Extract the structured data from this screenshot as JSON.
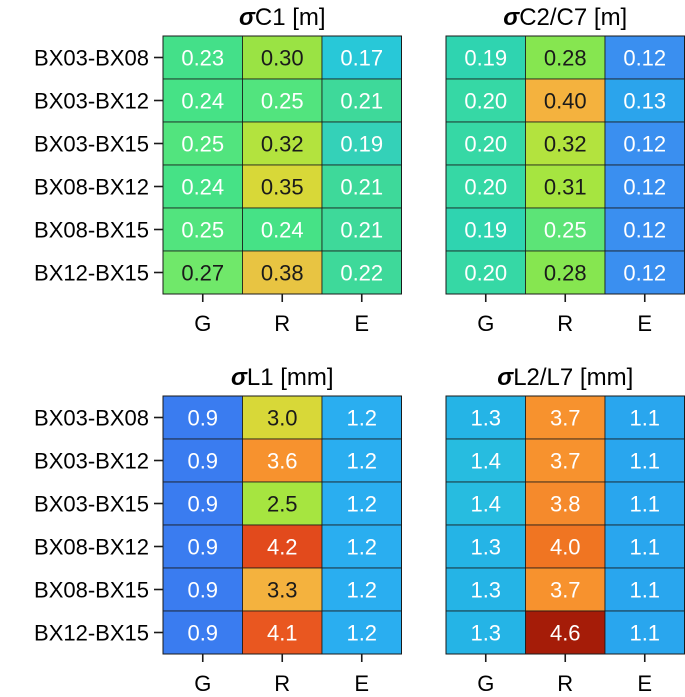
{
  "chart_data": [
    {
      "type": "heatmap",
      "title_symbol": "σ",
      "title": "C1 [m]",
      "rows": [
        "BX03-BX08",
        "BX03-BX12",
        "BX03-BX15",
        "BX08-BX12",
        "BX08-BX15",
        "BX12-BX15"
      ],
      "columns": [
        "G",
        "R",
        "E"
      ],
      "value_format": "0.00",
      "values": [
        [
          0.23,
          0.3,
          0.17
        ],
        [
          0.24,
          0.25,
          0.21
        ],
        [
          0.25,
          0.32,
          0.19
        ],
        [
          0.24,
          0.35,
          0.21
        ],
        [
          0.25,
          0.24,
          0.21
        ],
        [
          0.27,
          0.38,
          0.22
        ]
      ],
      "cell_colors": [
        [
          "#44e089",
          "#9ae344",
          "#28c8d8"
        ],
        [
          "#46e286",
          "#52e47e",
          "#3ed99a"
        ],
        [
          "#52e47e",
          "#b3e33e",
          "#34d1b8"
        ],
        [
          "#46e286",
          "#d8d838",
          "#3ed99a"
        ],
        [
          "#52e47e",
          "#46e286",
          "#3ed99a"
        ],
        [
          "#70e86a",
          "#e8c442",
          "#3ed99a"
        ]
      ]
    },
    {
      "type": "heatmap",
      "title_symbol": "σ",
      "title": "C2/C7 [m]",
      "rows": [
        "BX03-BX08",
        "BX03-BX12",
        "BX03-BX15",
        "BX08-BX12",
        "BX08-BX15",
        "BX12-BX15"
      ],
      "columns": [
        "G",
        "R",
        "E"
      ],
      "value_format": "0.00",
      "values": [
        [
          0.19,
          0.28,
          0.12
        ],
        [
          0.2,
          0.4,
          0.13
        ],
        [
          0.2,
          0.32,
          0.12
        ],
        [
          0.2,
          0.31,
          0.12
        ],
        [
          0.19,
          0.25,
          0.12
        ],
        [
          0.2,
          0.28,
          0.12
        ]
      ],
      "cell_colors": [
        [
          "#2fd4b0",
          "#86e650",
          "#3a8ff0"
        ],
        [
          "#36d8a5",
          "#f4b23e",
          "#2ba4ec"
        ],
        [
          "#36d8a5",
          "#b3e33e",
          "#3a8ff0"
        ],
        [
          "#36d8a5",
          "#a6e540",
          "#3a8ff0"
        ],
        [
          "#2fd4b0",
          "#5ce477",
          "#3a8ff0"
        ],
        [
          "#36d8a5",
          "#86e650",
          "#3a8ff0"
        ]
      ]
    },
    {
      "type": "heatmap",
      "title_symbol": "σ",
      "title": "L1 [mm]",
      "rows": [
        "BX03-BX08",
        "BX03-BX12",
        "BX03-BX15",
        "BX08-BX12",
        "BX08-BX15",
        "BX12-BX15"
      ],
      "columns": [
        "G",
        "R",
        "E"
      ],
      "value_format": "0.0",
      "values": [
        [
          0.9,
          3.0,
          1.2
        ],
        [
          0.9,
          3.6,
          1.2
        ],
        [
          0.9,
          2.5,
          1.2
        ],
        [
          0.9,
          4.2,
          1.2
        ],
        [
          0.9,
          3.3,
          1.2
        ],
        [
          0.9,
          4.1,
          1.2
        ]
      ],
      "cell_colors": [
        [
          "#3a7cf0",
          "#d8d838",
          "#2aaef0"
        ],
        [
          "#3a7cf0",
          "#f7922e",
          "#2aaef0"
        ],
        [
          "#3a7cf0",
          "#a6e540",
          "#2aaef0"
        ],
        [
          "#3a7cf0",
          "#e24a1c",
          "#2aaef0"
        ],
        [
          "#3a7cf0",
          "#f4b23e",
          "#2aaef0"
        ],
        [
          "#3a7cf0",
          "#e95720",
          "#2aaef0"
        ]
      ]
    },
    {
      "type": "heatmap",
      "title_symbol": "σ",
      "title": "L2/L7 [mm]",
      "rows": [
        "BX03-BX08",
        "BX03-BX12",
        "BX03-BX15",
        "BX08-BX12",
        "BX08-BX15",
        "BX12-BX15"
      ],
      "columns": [
        "G",
        "R",
        "E"
      ],
      "value_format": "0.0",
      "values": [
        [
          1.3,
          3.7,
          1.1
        ],
        [
          1.4,
          3.7,
          1.1
        ],
        [
          1.4,
          3.8,
          1.1
        ],
        [
          1.3,
          4.0,
          1.1
        ],
        [
          1.3,
          3.7,
          1.1
        ],
        [
          1.3,
          4.6,
          1.1
        ]
      ],
      "cell_colors": [
        [
          "#25b4e6",
          "#f7922e",
          "#29a6ee"
        ],
        [
          "#27bce0",
          "#f7922e",
          "#29a6ee"
        ],
        [
          "#27bce0",
          "#f58a2c",
          "#29a6ee"
        ],
        [
          "#25b4e6",
          "#f07522",
          "#29a6ee"
        ],
        [
          "#25b4e6",
          "#f7922e",
          "#29a6ee"
        ],
        [
          "#25b4e6",
          "#a51c08",
          "#29a6ee"
        ]
      ]
    }
  ]
}
